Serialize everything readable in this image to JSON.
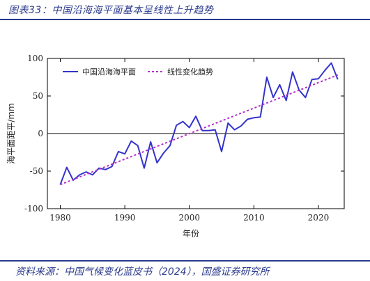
{
  "figure": {
    "title": "图表33：中国沿海海平面基本呈线性上升趋势",
    "source": "资料来源：中国气候变化蓝皮书（2024），国盛证券研究所"
  },
  "colors": {
    "brand": "#2b3a8c",
    "series_line": "#3333cc",
    "trend_line": "#b030c8",
    "axis": "#000000"
  },
  "chart_data": {
    "type": "line",
    "xlabel": "年份",
    "ylabel": "海平面距平/mm",
    "xlim": [
      1978,
      2024
    ],
    "ylim": [
      -100,
      100
    ],
    "xticks": [
      1980,
      1990,
      2000,
      2010,
      2020
    ],
    "yticks": [
      -100,
      -50,
      0,
      50,
      100
    ],
    "legend_position": "top",
    "series": [
      {
        "name": "中国沿海海平面",
        "style": "solid",
        "x": [
          1980,
          1981,
          1982,
          1983,
          1984,
          1985,
          1986,
          1987,
          1988,
          1989,
          1990,
          1991,
          1992,
          1993,
          1994,
          1995,
          1996,
          1997,
          1998,
          1999,
          2000,
          2001,
          2002,
          2003,
          2004,
          2005,
          2006,
          2007,
          2008,
          2009,
          2010,
          2011,
          2012,
          2013,
          2014,
          2015,
          2016,
          2017,
          2018,
          2019,
          2020,
          2021,
          2022,
          2023
        ],
        "y": [
          -68,
          -45,
          -62,
          -55,
          -51,
          -55,
          -46,
          -48,
          -44,
          -24,
          -27,
          -10,
          -16,
          -46,
          -11,
          -39,
          -26,
          -16,
          11,
          16,
          8,
          23,
          4,
          4,
          5,
          -24,
          14,
          5,
          10,
          19,
          21,
          22,
          75,
          48,
          65,
          44,
          82,
          58,
          48,
          72,
          73,
          84,
          94,
          72
        ]
      },
      {
        "name": "线性变化趋势",
        "style": "dashed",
        "x": [
          1980,
          2023
        ],
        "y": [
          -68,
          78
        ]
      }
    ]
  }
}
